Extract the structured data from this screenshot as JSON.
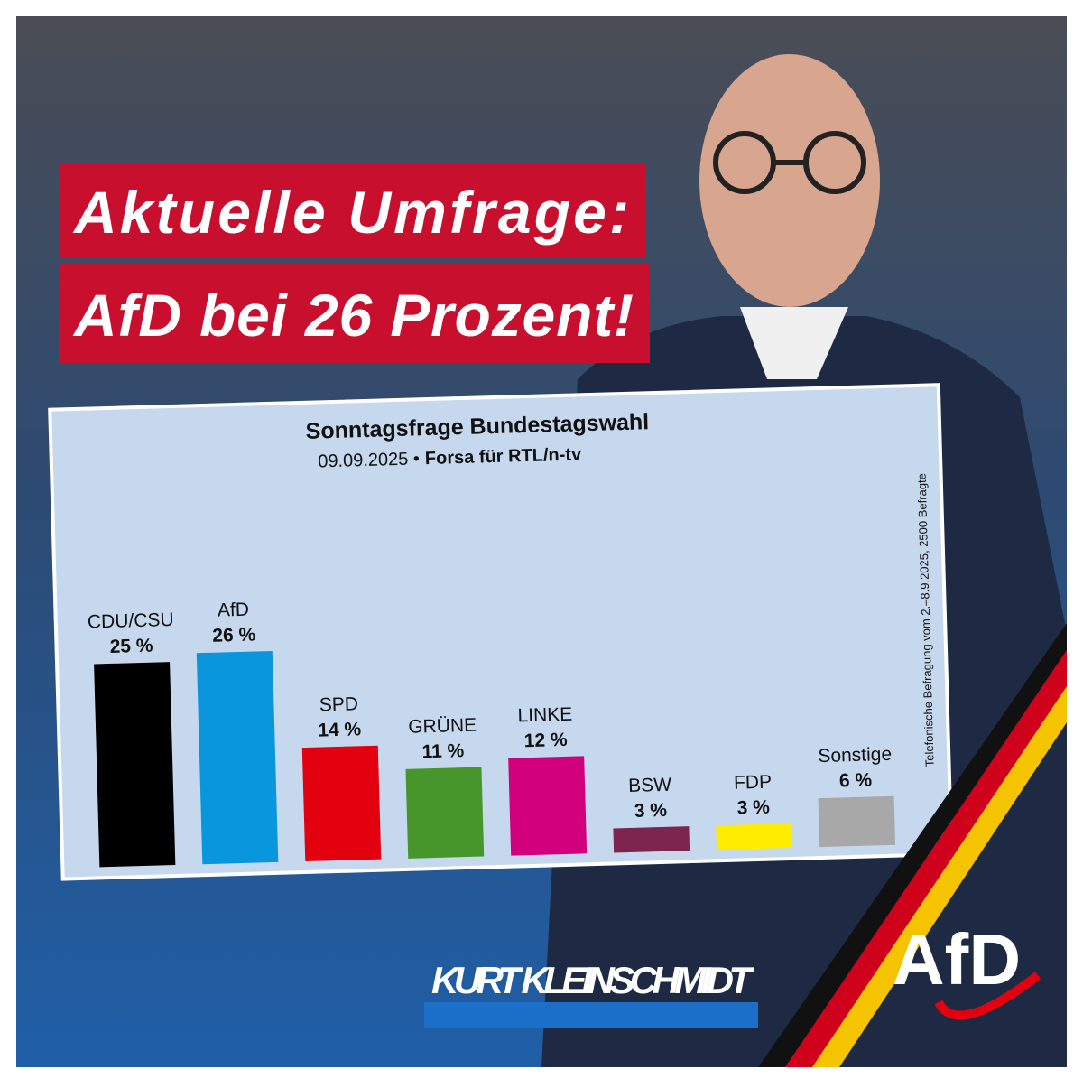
{
  "headline": [
    "Aktuelle Umfrage:",
    "AfD bei 26 Prozent!"
  ],
  "chart_data": {
    "type": "bar",
    "title": "Sonntagsfrage Bundestagswahl",
    "subtitle": "09.09.2025 •",
    "source": "Forsa für RTL/n-tv",
    "note": "Telefonische Befragung vom 2.–8.9.2025, 2500 Befragte",
    "categories": [
      "CDU/CSU",
      "AfD",
      "SPD",
      "GRÜNE",
      "LINKE",
      "BSW",
      "FDP",
      "Sonstige"
    ],
    "values": [
      25,
      26,
      14,
      11,
      12,
      3,
      3,
      6
    ],
    "value_labels": [
      "25 %",
      "26 %",
      "14 %",
      "11 %",
      "12 %",
      "3 %",
      "3 %",
      "6 %"
    ],
    "colors": [
      "#000000",
      "#0a96dc",
      "#e3000f",
      "#46962b",
      "#d3007d",
      "#7d254f",
      "#ffed00",
      "#a8a8a8"
    ]
  },
  "name": "KURT KLEINSCHMIDT",
  "logo": "AfD"
}
